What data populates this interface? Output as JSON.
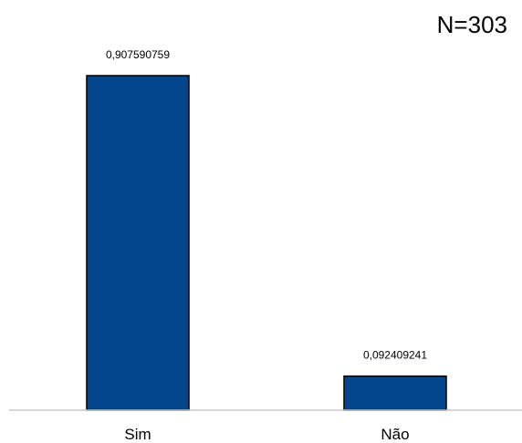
{
  "chart_data": {
    "type": "bar",
    "annotation": "N=303",
    "categories": [
      "Sim",
      "Não"
    ],
    "values": [
      0.907590759,
      0.092409241
    ],
    "data_labels": [
      "0,907590759",
      "0,092409241"
    ],
    "title": "",
    "xlabel": "",
    "ylabel": "",
    "ylim": [
      0,
      1
    ],
    "grid": false,
    "legend": "none",
    "bar_color": "#02468C",
    "bar_outline": "#000000",
    "axis_color": "#C8C8C8"
  }
}
